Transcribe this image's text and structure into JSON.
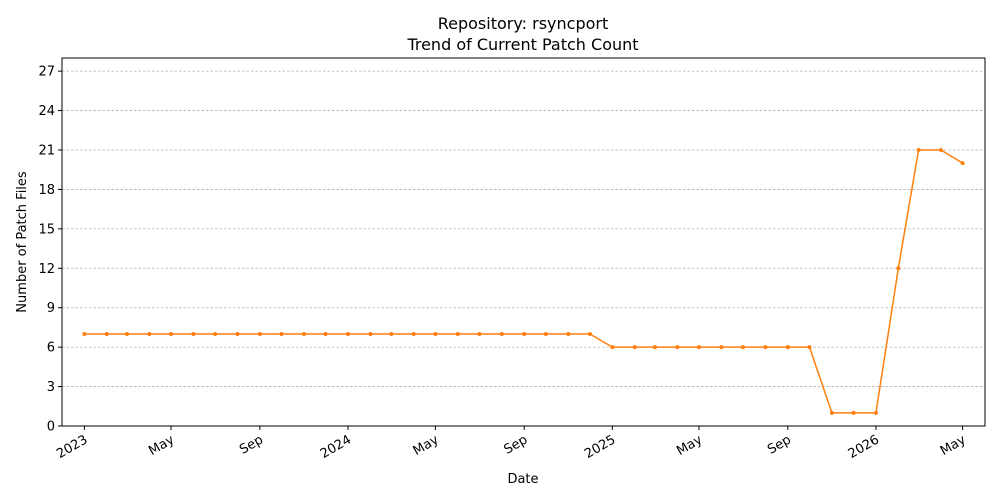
{
  "chart_data": {
    "type": "line",
    "title_line1": "Repository: rsyncport",
    "title_line2": "Trend of Current Patch Count",
    "xlabel": "Date",
    "ylabel": "Number of Patch Files",
    "ylim": [
      0,
      28
    ],
    "yticks": [
      0,
      3,
      6,
      9,
      12,
      15,
      18,
      21,
      24,
      27
    ],
    "xlim": [
      "2022-12-01",
      "2026-06-01"
    ],
    "xticks": [
      {
        "date": "2023-01-01",
        "label": "2023"
      },
      {
        "date": "2023-05-01",
        "label": "May"
      },
      {
        "date": "2023-09-01",
        "label": "Sep"
      },
      {
        "date": "2024-01-01",
        "label": "2024"
      },
      {
        "date": "2024-05-01",
        "label": "May"
      },
      {
        "date": "2024-09-01",
        "label": "Sep"
      },
      {
        "date": "2025-01-01",
        "label": "2025"
      },
      {
        "date": "2025-05-01",
        "label": "May"
      },
      {
        "date": "2025-09-01",
        "label": "Sep"
      },
      {
        "date": "2026-01-01",
        "label": "2026"
      },
      {
        "date": "2026-05-01",
        "label": "May"
      }
    ],
    "grid": "y-dashed",
    "line_color": "#ff7f0e",
    "series": [
      {
        "x": [
          "2023-01-01",
          "2023-02-01",
          "2023-03-01",
          "2023-04-01",
          "2023-05-01",
          "2023-06-01",
          "2023-07-01",
          "2023-08-01",
          "2023-09-01",
          "2023-10-01",
          "2023-11-01",
          "2023-12-01",
          "2024-01-01",
          "2024-02-01",
          "2024-03-01",
          "2024-04-01",
          "2024-05-01",
          "2024-06-01",
          "2024-07-01",
          "2024-08-01",
          "2024-09-01",
          "2024-10-01",
          "2024-11-01",
          "2024-12-01",
          "2025-01-01",
          "2025-02-01",
          "2025-03-01",
          "2025-04-01",
          "2025-05-01",
          "2025-06-01",
          "2025-07-01",
          "2025-08-01",
          "2025-09-01",
          "2025-10-01",
          "2025-11-01",
          "2025-12-01",
          "2026-01-01",
          "2026-02-01",
          "2026-03-01",
          "2026-04-01",
          "2026-05-01"
        ],
        "values": [
          7,
          7,
          7,
          7,
          7,
          7,
          7,
          7,
          7,
          7,
          7,
          7,
          7,
          7,
          7,
          7,
          7,
          7,
          7,
          7,
          7,
          7,
          7,
          7,
          6,
          6,
          6,
          6,
          6,
          6,
          6,
          6,
          6,
          6,
          1,
          1,
          1,
          12,
          21,
          21,
          20
        ]
      }
    ]
  }
}
